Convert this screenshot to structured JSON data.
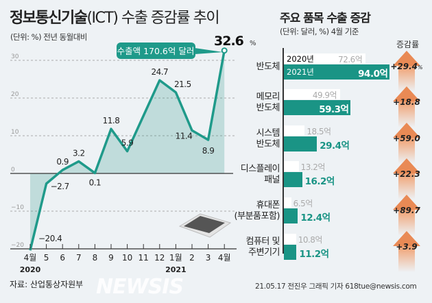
{
  "left": {
    "title_bold": "정보통신기술",
    "title_light": "(ICT) 수출 증감률 추이",
    "unit": "(단위: %) 전년 동월대비",
    "callout": "수출액 170.6억 달러",
    "highlight": "32.6",
    "highlight_unit": "%",
    "source": "자료: 산업통상자원부"
  },
  "chart_data": {
    "type": "line",
    "title": "정보통신기술(ICT) 수출 증감률 추이",
    "ylabel": "%",
    "ylim": [
      -20,
      33
    ],
    "yticks": [
      -20,
      -10,
      0,
      10,
      20,
      30
    ],
    "grid": true,
    "categories": [
      "4월",
      "5",
      "6",
      "7",
      "8",
      "9",
      "10",
      "11",
      "12",
      "1월",
      "2",
      "3",
      "4월"
    ],
    "year_labels": [
      {
        "at": "4월",
        "text": "2020"
      },
      {
        "at": "1월",
        "text": "2021"
      }
    ],
    "values": [
      -20.4,
      -2.7,
      0.9,
      3.2,
      0.1,
      11.8,
      5.9,
      null,
      24.7,
      21.5,
      11.4,
      8.9,
      32.6
    ],
    "labels": [
      "-20.4",
      "-2.7",
      "0.9",
      "3.2",
      "0.1",
      "11.8",
      "5.9",
      "",
      "24.7",
      "21.5",
      "11.4",
      "8.9",
      "32.6"
    ],
    "color": "#1f9a8a"
  },
  "right": {
    "title": "주요 품목 수출 증감",
    "unit": "(단위: 달러, %) 4월 기준",
    "rate_header": "증감률",
    "legend_2020": "2020년",
    "legend_2021": "2021년",
    "items": [
      {
        "name1": "반도체",
        "name2": "",
        "v2020": 72.6,
        "v2021": 94.0,
        "l2020": "72.6억",
        "l2021": "94.0억",
        "rate": "+29.4",
        "rate_unit": "%"
      },
      {
        "name1": "메모리",
        "name2": "반도체",
        "v2020": 49.9,
        "v2021": 59.3,
        "l2020": "49.9억",
        "l2021": "59.3억",
        "rate": "+18.8",
        "rate_unit": ""
      },
      {
        "name1": "시스템",
        "name2": "반도체",
        "v2020": 18.5,
        "v2021": 29.4,
        "l2020": "18.5억",
        "l2021": "29.4억",
        "rate": "+59.0",
        "rate_unit": ""
      },
      {
        "name1": "디스플레이",
        "name2": "패널",
        "v2020": 13.2,
        "v2021": 16.2,
        "l2020": "13.2억",
        "l2021": "16.2억",
        "rate": "+22.3",
        "rate_unit": ""
      },
      {
        "name1": "휴대폰",
        "name2": "(부분품포함)",
        "v2020": 6.5,
        "v2021": 12.4,
        "l2020": "6.5억",
        "l2021": "12.4억",
        "rate": "+89.7",
        "rate_unit": ""
      },
      {
        "name1": "컴퓨터 및",
        "name2": "주변기기",
        "v2020": 10.8,
        "v2021": 11.2,
        "l2020": "10.8억",
        "l2021": "11.2억",
        "rate": "+3.9",
        "rate_unit": ""
      }
    ],
    "bar_color_2021": "#1a9485",
    "bar_color_2020": "#ffffff",
    "arrow_color": "#e98a55"
  },
  "footer": {
    "credit": "21.05.17 전진우 그래픽 기자 618tue@newsis.com",
    "watermark": "NEWSIS"
  }
}
